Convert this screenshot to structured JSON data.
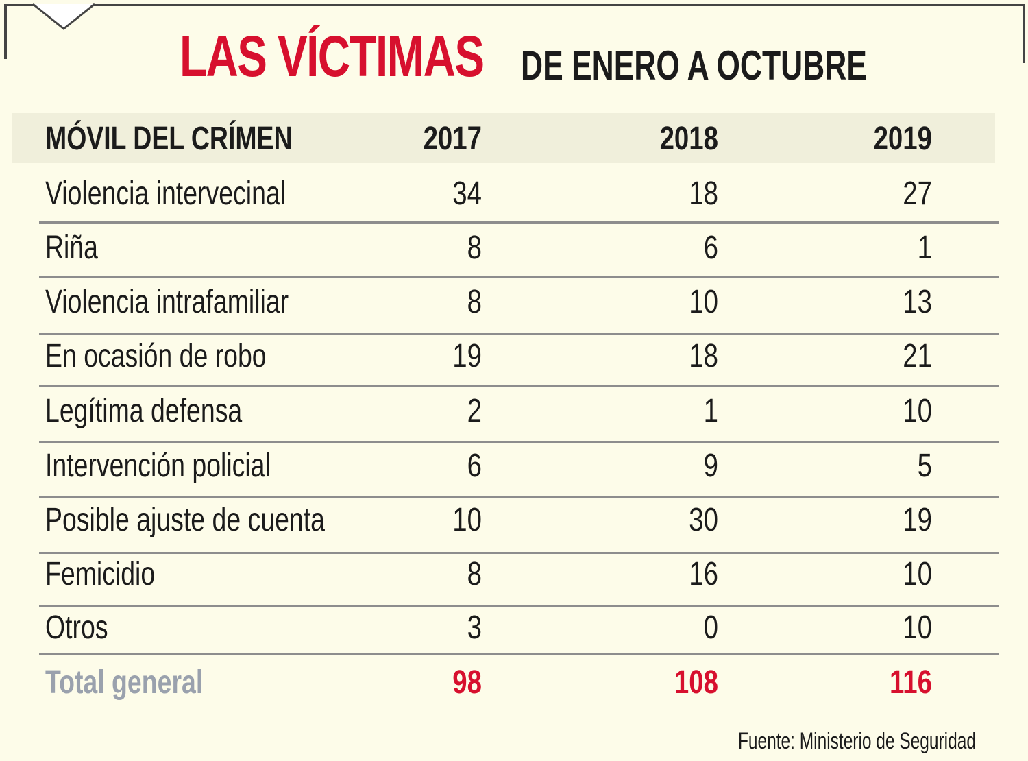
{
  "chart_data": {
    "type": "table",
    "title": "LAS VÍCTIMAS",
    "subtitle": "DE ENERO A OCTUBRE",
    "columns": [
      "MÓVIL DEL CRÍMEN",
      "2017",
      "2018",
      "2019"
    ],
    "rows": [
      {
        "label": "Violencia intervecinal",
        "values": [
          34,
          18,
          27
        ]
      },
      {
        "label": "Riña",
        "values": [
          8,
          6,
          1
        ]
      },
      {
        "label": "Violencia intrafamiliar",
        "values": [
          8,
          10,
          13
        ]
      },
      {
        "label": "En ocasión de robo",
        "values": [
          19,
          18,
          21
        ]
      },
      {
        "label": "Legítima defensa",
        "values": [
          2,
          1,
          10
        ]
      },
      {
        "label": "Intervención policial",
        "values": [
          6,
          9,
          5
        ]
      },
      {
        "label": "Posible ajuste de cuenta",
        "values": [
          10,
          30,
          19
        ]
      },
      {
        "label": "Femicidio",
        "values": [
          8,
          16,
          10
        ]
      },
      {
        "label": "Otros",
        "values": [
          3,
          0,
          10
        ]
      }
    ],
    "total": {
      "label": "Total general",
      "values": [
        98,
        108,
        116
      ]
    },
    "source": "Fuente: Ministerio de Seguridad",
    "colors": {
      "title": "#d7102e",
      "total_values": "#d7102e",
      "total_label": "#9aa1ad",
      "background": "#fdfce9",
      "header_band": "#f0efdb"
    }
  }
}
